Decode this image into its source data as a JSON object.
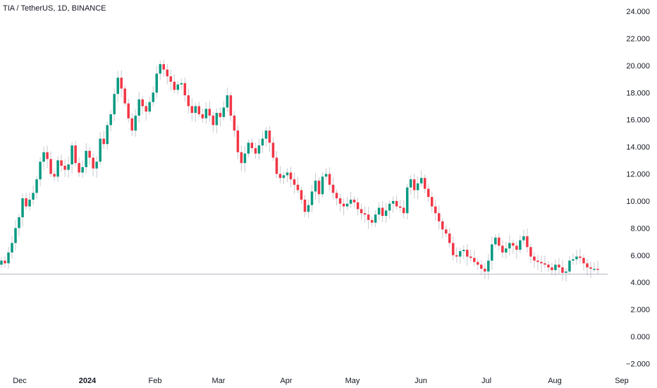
{
  "chart_data": {
    "type": "candlestick",
    "title": "TIA / TetherUS, 1D, BINANCE",
    "ylim": [
      -2,
      24
    ],
    "y_ticks": [
      24,
      22,
      20,
      18,
      16,
      14,
      12,
      10,
      8,
      6,
      4,
      2,
      0,
      -2
    ],
    "y_tick_labels": [
      "24.000",
      "22.000",
      "20.000",
      "18.000",
      "16.000",
      "14.000",
      "12.000",
      "10.000",
      "8.000",
      "6.000",
      "4.000",
      "2.000",
      "0.000",
      "−2.000"
    ],
    "x_tick_labels": [
      {
        "label": "Dec",
        "bold": false
      },
      {
        "label": "2024",
        "bold": true
      },
      {
        "label": "Feb",
        "bold": false
      },
      {
        "label": "Mar",
        "bold": false
      },
      {
        "label": "Apr",
        "bold": false
      },
      {
        "label": "May",
        "bold": false
      },
      {
        "label": "Jun",
        "bold": false
      },
      {
        "label": "Jul",
        "bold": false
      },
      {
        "label": "Aug",
        "bold": false
      },
      {
        "label": "Sep",
        "bold": false
      }
    ],
    "horizontal_line": 4.6,
    "up_color": "#089981",
    "down_color": "#f23645",
    "close_series": [
      5.6,
      5.4,
      6.2,
      6.9,
      8.0,
      8.8,
      10.2,
      9.6,
      10.1,
      10.6,
      11.6,
      12.9,
      13.6,
      13.1,
      12.0,
      11.8,
      13.0,
      12.6,
      12.3,
      12.7,
      14.1,
      12.8,
      12.1,
      12.5,
      13.7,
      13.2,
      12.4,
      12.9,
      14.6,
      14.2,
      15.6,
      16.4,
      17.9,
      19.1,
      18.3,
      17.2,
      16.1,
      15.2,
      16.3,
      17.5,
      17.0,
      16.6,
      17.3,
      18.0,
      19.4,
      20.1,
      19.7,
      19.2,
      18.8,
      18.2,
      18.6,
      18.7,
      17.8,
      17.0,
      16.5,
      17.0,
      16.4,
      16.1,
      16.8,
      16.3,
      15.6,
      16.5,
      16.2,
      16.9,
      17.8,
      16.3,
      15.2,
      13.6,
      12.8,
      13.5,
      14.3,
      13.9,
      13.5,
      14.1,
      14.6,
      15.2,
      14.3,
      13.2,
      12.0,
      11.7,
      11.9,
      12.1,
      11.6,
      11.2,
      10.8,
      10.1,
      9.2,
      9.7,
      10.7,
      11.5,
      10.5,
      11.8,
      12.0,
      11.2,
      10.6,
      10.2,
      9.8,
      9.6,
      9.8,
      10.1,
      9.9,
      9.4,
      9.1,
      9.0,
      8.6,
      8.4,
      9.0,
      9.5,
      8.9,
      9.3,
      9.8,
      10.0,
      9.6,
      9.5,
      9.1,
      11.0,
      11.6,
      10.8,
      11.3,
      11.7,
      10.9,
      10.3,
      9.6,
      9.1,
      8.5,
      7.9,
      7.6,
      6.9,
      6.0,
      5.9,
      6.3,
      6.4,
      5.9,
      5.8,
      5.5,
      5.3,
      5.0,
      4.8,
      5.6,
      6.8,
      7.3,
      6.7,
      6.2,
      6.5,
      6.9,
      6.7,
      6.4,
      7.1,
      7.4,
      6.6,
      5.9,
      5.6,
      5.5,
      5.4,
      5.3,
      5.1,
      4.9,
      5.3,
      5.1,
      4.7,
      4.8,
      5.6,
      5.7,
      5.9,
      5.8,
      5.4,
      5.1,
      5.0,
      5.0,
      4.95
    ]
  }
}
